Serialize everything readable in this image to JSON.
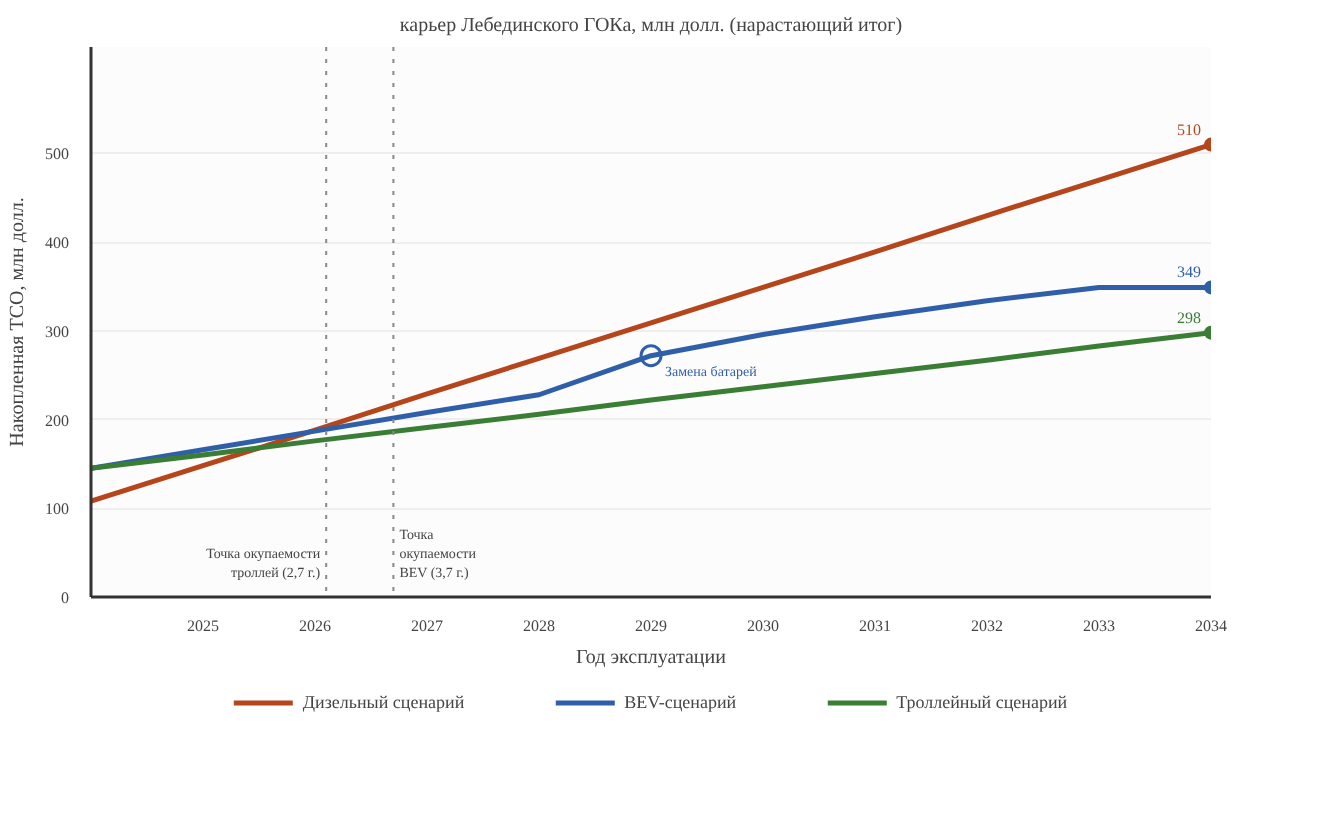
{
  "chart_data": {
    "type": "line",
    "title": "карьер Лебединского ГОКа, млн долл. (нарастающий итог)",
    "xlabel": "Год эксплуатации",
    "ylabel": "Накопленная TCO, млн долл.",
    "x": [
      2024,
      2025,
      2026,
      2027,
      2028,
      2029,
      2030,
      2031,
      2032,
      2033,
      2034
    ],
    "series": [
      {
        "name": "Дизельный сценарий",
        "color": "#b5451b",
        "values": [
          108,
          148,
          188,
          229,
          269,
          309,
          349,
          389,
          430,
          470,
          510
        ],
        "value_labels": [
          null,
          null,
          null,
          null,
          null,
          null,
          null,
          null,
          null,
          null,
          "510"
        ]
      },
      {
        "name": "BEV-сценарий",
        "color": "#2f5fa8",
        "values": [
          145,
          166,
          187,
          208,
          228,
          272,
          296,
          316,
          334,
          349,
          349
        ],
        "value_labels": [
          null,
          null,
          null,
          null,
          null,
          null,
          null,
          null,
          null,
          null,
          "349"
        ]
      },
      {
        "name": "Троллейный сценарий",
        "color": "#3a7d34",
        "values": [
          145,
          160,
          176,
          191,
          206,
          222,
          237,
          252,
          267,
          283,
          298
        ],
        "value_labels": [
          null,
          null,
          null,
          null,
          null,
          null,
          null,
          null,
          null,
          null,
          "298"
        ]
      }
    ],
    "xlim": [
      2024,
      2034
    ],
    "ylim": [
      0,
      620
    ],
    "xticks": [
      2025,
      2026,
      2027,
      2028,
      2029,
      2030,
      2031,
      2032,
      2033,
      2034
    ],
    "yticks": [
      0,
      100,
      200,
      300,
      400,
      500
    ],
    "grid": "y",
    "legend": "bottom",
    "line_style": "solid",
    "ref_lines": [
      {
        "axis": "x",
        "value": 2026.1,
        "label": "Точка окупаемости\nтроллей (2,7 г.)",
        "color": "#888888",
        "line_style": "dotted"
      },
      {
        "axis": "x",
        "value": 2026.7,
        "label": "Точка\nокупаемости\nBEV (3,7 г.)",
        "color": "#888888",
        "line_style": "dotted"
      }
    ],
    "annotations": [
      {
        "text": "Замена батарей",
        "x": 2029,
        "y": 272
      }
    ]
  }
}
